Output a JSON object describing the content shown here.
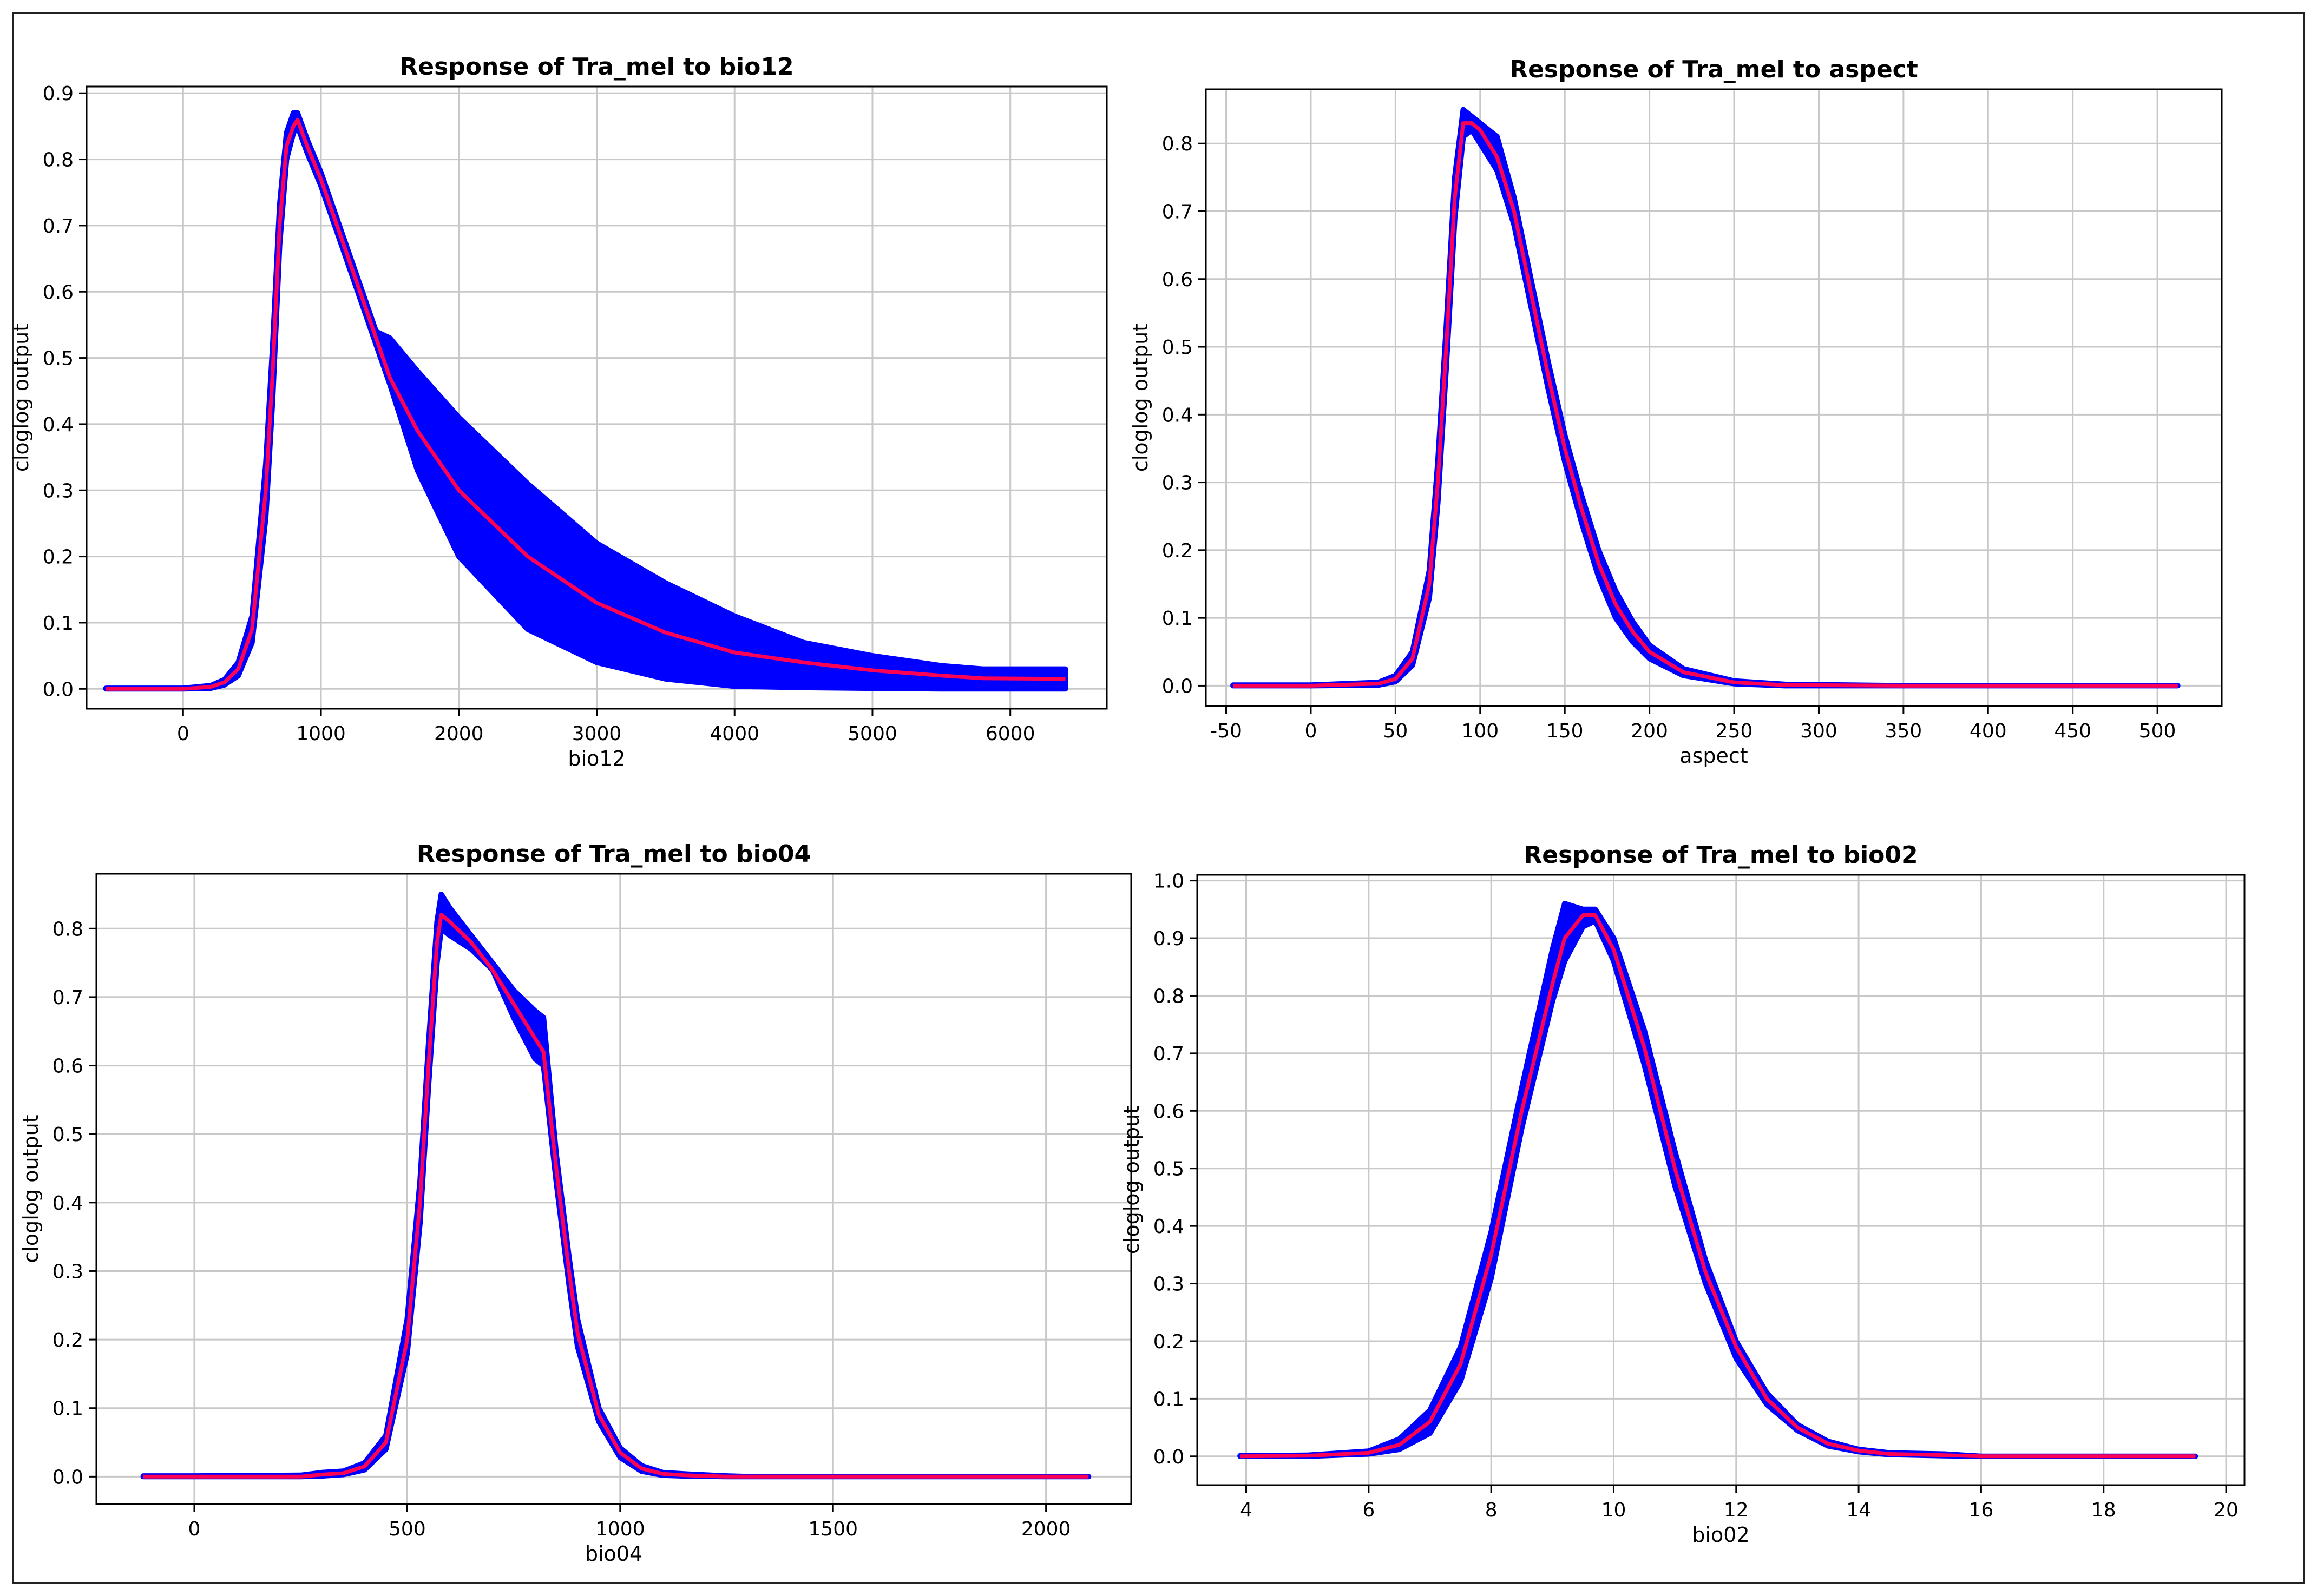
{
  "colors": {
    "band": "#0000ff",
    "mean": "#ff0055",
    "grid": "#c8c8c8"
  },
  "chart_data": [
    {
      "type": "area",
      "title": "Response of Tra_mel to bio12",
      "xlabel": "bio12",
      "ylabel": "cloglog output",
      "xlim": [
        -700,
        6700
      ],
      "ylim": [
        -0.03,
        0.91
      ],
      "xticks": [
        0,
        1000,
        2000,
        3000,
        4000,
        5000,
        6000
      ],
      "xtick_labels": [
        "0",
        "1000",
        "2000",
        "3000",
        "4000",
        "5000",
        "6000"
      ],
      "yticks": [
        0.0,
        0.1,
        0.2,
        0.3,
        0.4,
        0.5,
        0.6,
        0.7,
        0.8,
        0.9
      ],
      "ytick_labels": [
        "0.0",
        "0.1",
        "0.2",
        "0.3",
        "0.4",
        "0.5",
        "0.6",
        "0.7",
        "0.8",
        "0.9"
      ],
      "grid": true,
      "series": [
        {
          "x": [
            -560,
            0,
            200,
            300,
            400,
            500,
            600,
            650,
            700,
            750,
            800,
            830,
            900,
            1000,
            1100,
            1200,
            1300,
            1400,
            1500,
            1700,
            2000,
            2500,
            3000,
            3500,
            4000,
            4500,
            5000,
            5500,
            5800,
            6400
          ],
          "mean": [
            0.0,
            0.0,
            0.003,
            0.01,
            0.03,
            0.09,
            0.3,
            0.48,
            0.7,
            0.82,
            0.85,
            0.86,
            0.82,
            0.77,
            0.71,
            0.65,
            0.59,
            0.53,
            0.47,
            0.39,
            0.3,
            0.2,
            0.13,
            0.085,
            0.055,
            0.04,
            0.028,
            0.02,
            0.016,
            0.015
          ],
          "upper": [
            0.001,
            0.001,
            0.005,
            0.014,
            0.04,
            0.11,
            0.34,
            0.52,
            0.73,
            0.84,
            0.87,
            0.87,
            0.83,
            0.78,
            0.72,
            0.66,
            0.6,
            0.54,
            0.53,
            0.48,
            0.41,
            0.31,
            0.22,
            0.16,
            0.11,
            0.07,
            0.05,
            0.035,
            0.03,
            0.03
          ],
          "lower": [
            0.0,
            0.0,
            0.001,
            0.006,
            0.02,
            0.07,
            0.26,
            0.44,
            0.67,
            0.8,
            0.84,
            0.85,
            0.81,
            0.76,
            0.7,
            0.64,
            0.58,
            0.52,
            0.46,
            0.33,
            0.2,
            0.09,
            0.04,
            0.015,
            0.004,
            0.002,
            0.001,
            0.0,
            0.0,
            0.0
          ]
        }
      ]
    },
    {
      "type": "area",
      "title": "Response of Tra_mel to aspect",
      "xlabel": "aspect",
      "ylabel": "cloglog output",
      "xlim": [
        -62,
        538
      ],
      "ylim": [
        -0.03,
        0.88
      ],
      "xticks": [
        -50,
        0,
        50,
        100,
        150,
        200,
        250,
        300,
        350,
        400,
        450,
        500
      ],
      "xtick_labels": [
        "-50",
        "0",
        "50",
        "100",
        "150",
        "200",
        "250",
        "300",
        "350",
        "400",
        "450",
        "500"
      ],
      "yticks": [
        0.0,
        0.1,
        0.2,
        0.3,
        0.4,
        0.5,
        0.6,
        0.7,
        0.8
      ],
      "ytick_labels": [
        "0.0",
        "0.1",
        "0.2",
        "0.3",
        "0.4",
        "0.5",
        "0.6",
        "0.7",
        "0.8"
      ],
      "grid": true,
      "series": [
        {
          "x": [
            -46,
            0,
            40,
            50,
            60,
            70,
            75,
            80,
            85,
            90,
            95,
            100,
            110,
            120,
            130,
            140,
            150,
            160,
            170,
            180,
            190,
            200,
            220,
            250,
            280,
            350,
            512
          ],
          "mean": [
            0.0,
            0.0,
            0.003,
            0.01,
            0.04,
            0.15,
            0.3,
            0.5,
            0.72,
            0.83,
            0.83,
            0.82,
            0.78,
            0.7,
            0.58,
            0.46,
            0.35,
            0.26,
            0.18,
            0.12,
            0.08,
            0.05,
            0.02,
            0.005,
            0.001,
            0.0,
            0.0
          ],
          "upper": [
            0.001,
            0.001,
            0.005,
            0.015,
            0.05,
            0.17,
            0.33,
            0.53,
            0.75,
            0.85,
            0.84,
            0.83,
            0.81,
            0.72,
            0.6,
            0.48,
            0.37,
            0.28,
            0.2,
            0.14,
            0.095,
            0.06,
            0.025,
            0.007,
            0.002,
            0.0,
            0.0
          ],
          "lower": [
            0.0,
            0.0,
            0.001,
            0.006,
            0.03,
            0.13,
            0.27,
            0.47,
            0.69,
            0.81,
            0.82,
            0.8,
            0.76,
            0.68,
            0.56,
            0.44,
            0.33,
            0.24,
            0.16,
            0.1,
            0.065,
            0.04,
            0.015,
            0.003,
            0.0,
            0.0,
            0.0
          ]
        }
      ]
    },
    {
      "type": "area",
      "title": "Response of Tra_mel to bio04",
      "xlabel": "bio04",
      "ylabel": "cloglog output",
      "xlim": [
        -230,
        2200
      ],
      "ylim": [
        -0.04,
        0.88
      ],
      "xticks": [
        0,
        500,
        1000,
        1500,
        2000
      ],
      "xtick_labels": [
        "0",
        "500",
        "1000",
        "1500",
        "2000"
      ],
      "yticks": [
        0.0,
        0.1,
        0.2,
        0.3,
        0.4,
        0.5,
        0.6,
        0.7,
        0.8
      ],
      "ytick_labels": [
        "0.0",
        "0.1",
        "0.2",
        "0.3",
        "0.4",
        "0.5",
        "0.6",
        "0.7",
        "0.8"
      ],
      "grid": true,
      "series": [
        {
          "x": [
            -120,
            0,
            250,
            300,
            350,
            400,
            450,
            500,
            530,
            550,
            570,
            580,
            600,
            650,
            700,
            750,
            800,
            820,
            850,
            880,
            900,
            950,
            1000,
            1050,
            1100,
            1150,
            1250,
            1300,
            1500,
            2100
          ],
          "mean": [
            0.0,
            0.0,
            0.0,
            0.003,
            0.005,
            0.015,
            0.05,
            0.2,
            0.4,
            0.6,
            0.78,
            0.82,
            0.81,
            0.78,
            0.74,
            0.69,
            0.64,
            0.62,
            0.45,
            0.3,
            0.21,
            0.09,
            0.035,
            0.012,
            0.004,
            0.002,
            0.0,
            0.0,
            0.0,
            0.0
          ],
          "upper": [
            0.001,
            0.001,
            0.002,
            0.006,
            0.008,
            0.02,
            0.06,
            0.23,
            0.43,
            0.63,
            0.81,
            0.85,
            0.83,
            0.79,
            0.75,
            0.71,
            0.68,
            0.67,
            0.47,
            0.32,
            0.23,
            0.1,
            0.042,
            0.016,
            0.006,
            0.004,
            0.001,
            0.0,
            0.0,
            0.0
          ],
          "lower": [
            0.0,
            0.0,
            0.0,
            0.001,
            0.003,
            0.01,
            0.04,
            0.18,
            0.37,
            0.57,
            0.75,
            0.8,
            0.79,
            0.77,
            0.74,
            0.67,
            0.61,
            0.6,
            0.43,
            0.28,
            0.19,
            0.08,
            0.028,
            0.008,
            0.002,
            0.001,
            0.0,
            0.0,
            0.0,
            0.0
          ]
        }
      ]
    },
    {
      "type": "area",
      "title": "Response of Tra_mel to bio02",
      "xlabel": "bio02",
      "ylabel": "cloglog output",
      "xlim": [
        3.2,
        20.3
      ],
      "ylim": [
        -0.05,
        1.01
      ],
      "xticks": [
        4,
        6,
        8,
        10,
        12,
        14,
        16,
        18,
        20
      ],
      "xtick_labels": [
        "4",
        "6",
        "8",
        "10",
        "12",
        "14",
        "16",
        "18",
        "20"
      ],
      "yticks": [
        0.0,
        0.1,
        0.2,
        0.3,
        0.4,
        0.5,
        0.6,
        0.7,
        0.8,
        0.9,
        1.0
      ],
      "ytick_labels": [
        "0.0",
        "0.1",
        "0.2",
        "0.3",
        "0.4",
        "0.5",
        "0.6",
        "0.7",
        "0.8",
        "0.9",
        "1.0"
      ],
      "grid": true,
      "series": [
        {
          "x": [
            3.9,
            5.0,
            6.0,
            6.5,
            7.0,
            7.5,
            8.0,
            8.5,
            9.0,
            9.2,
            9.5,
            9.7,
            10.0,
            10.5,
            11.0,
            11.5,
            12.0,
            12.5,
            13.0,
            13.5,
            14.0,
            14.5,
            15.4,
            16.0,
            19.5
          ],
          "mean": [
            0.0,
            0.001,
            0.006,
            0.02,
            0.06,
            0.16,
            0.35,
            0.6,
            0.82,
            0.9,
            0.94,
            0.94,
            0.88,
            0.71,
            0.5,
            0.32,
            0.19,
            0.1,
            0.05,
            0.022,
            0.01,
            0.004,
            0.002,
            0.0,
            0.0
          ],
          "upper": [
            0.001,
            0.002,
            0.009,
            0.03,
            0.08,
            0.19,
            0.39,
            0.64,
            0.88,
            0.96,
            0.95,
            0.95,
            0.9,
            0.74,
            0.53,
            0.34,
            0.2,
            0.11,
            0.055,
            0.026,
            0.012,
            0.006,
            0.004,
            0.0,
            0.0
          ],
          "lower": [
            0.0,
            0.0,
            0.004,
            0.012,
            0.04,
            0.13,
            0.31,
            0.57,
            0.79,
            0.86,
            0.92,
            0.93,
            0.86,
            0.68,
            0.47,
            0.3,
            0.17,
            0.09,
            0.045,
            0.018,
            0.008,
            0.003,
            0.001,
            0.0,
            0.0
          ]
        }
      ]
    }
  ]
}
